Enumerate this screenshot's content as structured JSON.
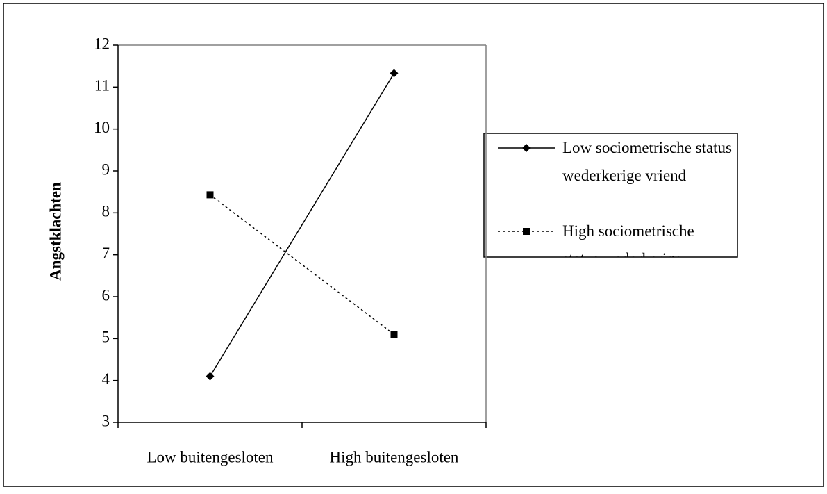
{
  "chart_data": {
    "type": "line",
    "y_label": "Angstklachten",
    "categories": [
      "Low buitengesloten",
      "High buitengesloten"
    ],
    "series": [
      {
        "name": "Low sociometrische status wederkerige vriend",
        "color": "#000000",
        "marker": "diamond",
        "line_style": "solid",
        "values": [
          4.1,
          11.33
        ]
      },
      {
        "name": "High sociometrische status wederkerige",
        "color": "#000000",
        "marker": "square",
        "line_style": "dotted",
        "values": [
          8.43,
          5.1
        ]
      }
    ],
    "ylim": [
      3,
      12
    ],
    "yticks": [
      3,
      4,
      5,
      6,
      7,
      8,
      9,
      10,
      11,
      12
    ]
  }
}
